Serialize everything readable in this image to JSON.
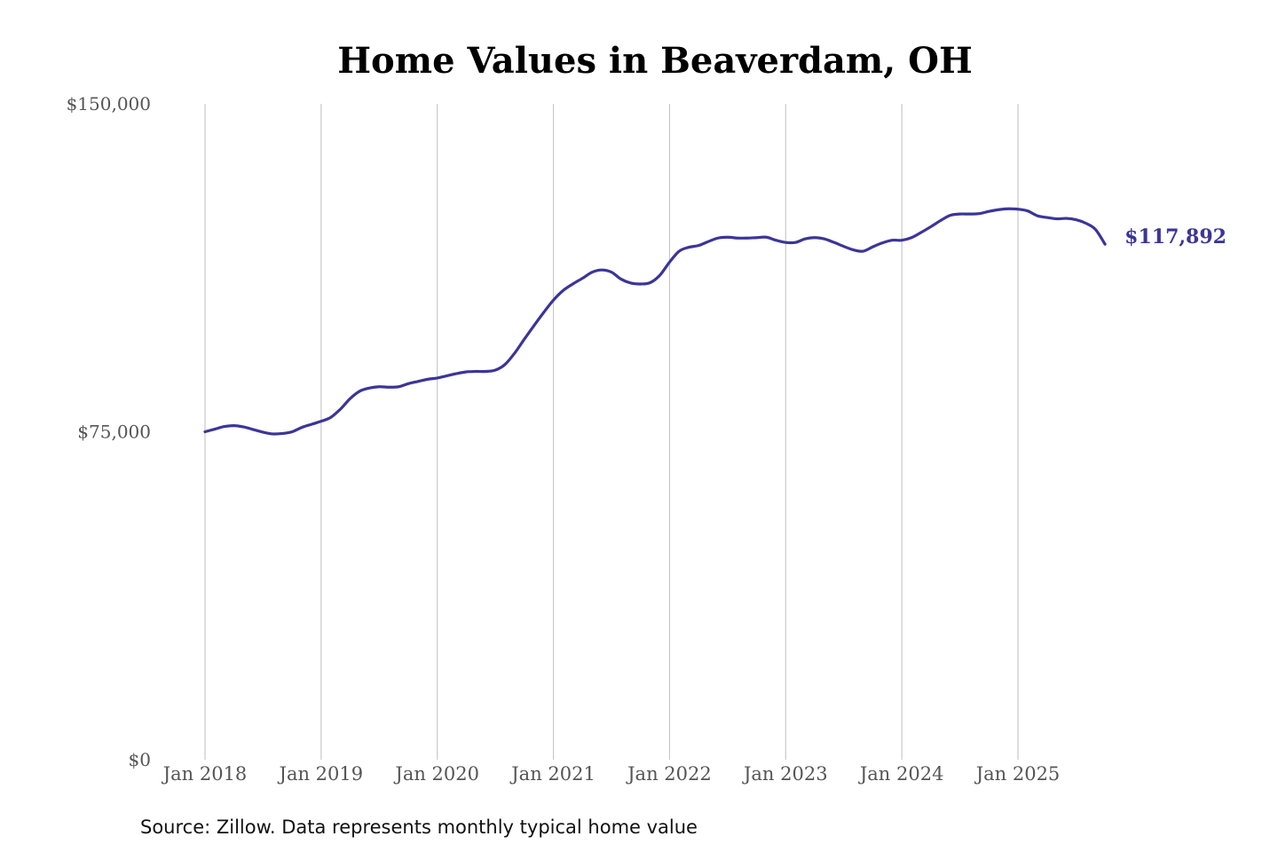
{
  "chart_data": {
    "type": "line",
    "title": "Home Values in Beaverdam, OH",
    "source": "Source: Zillow. Data represents monthly typical home value",
    "ylim": [
      0,
      150000
    ],
    "y_ticks": [
      {
        "value": 0,
        "label": "$0"
      },
      {
        "value": 75000,
        "label": "$75,000"
      },
      {
        "value": 150000,
        "label": "$150,000"
      }
    ],
    "x_ticks": [
      {
        "value": 2018.0,
        "label": "Jan 2018"
      },
      {
        "value": 2019.0,
        "label": "Jan 2019"
      },
      {
        "value": 2020.0,
        "label": "Jan 2020"
      },
      {
        "value": 2021.0,
        "label": "Jan 2021"
      },
      {
        "value": 2022.0,
        "label": "Jan 2022"
      },
      {
        "value": 2023.0,
        "label": "Jan 2023"
      },
      {
        "value": 2024.0,
        "label": "Jan 2024"
      },
      {
        "value": 2025.0,
        "label": "Jan 2025"
      }
    ],
    "xlim": [
      2018.0,
      2025.75
    ],
    "grid": "vertical",
    "line_color": "#3b3598",
    "end_label": "$117,892",
    "series": [
      {
        "x": [
          "2018-01",
          "2018-02",
          "2018-03",
          "2018-04",
          "2018-05",
          "2018-06",
          "2018-07",
          "2018-08",
          "2018-09",
          "2018-10",
          "2018-11",
          "2018-12",
          "2019-01",
          "2019-02",
          "2019-03",
          "2019-04",
          "2019-05",
          "2019-06",
          "2019-07",
          "2019-08",
          "2019-09",
          "2019-10",
          "2019-11",
          "2019-12",
          "2020-01",
          "2020-02",
          "2020-03",
          "2020-04",
          "2020-05",
          "2020-06",
          "2020-07",
          "2020-08",
          "2020-09",
          "2020-10",
          "2020-11",
          "2020-12",
          "2021-01",
          "2021-02",
          "2021-03",
          "2021-04",
          "2021-05",
          "2021-06",
          "2021-07",
          "2021-08",
          "2021-09",
          "2021-10",
          "2021-11",
          "2021-12",
          "2022-01",
          "2022-02",
          "2022-03",
          "2022-04",
          "2022-05",
          "2022-06",
          "2022-07",
          "2022-08",
          "2022-09",
          "2022-10",
          "2022-11",
          "2022-12",
          "2023-01",
          "2023-02",
          "2023-03",
          "2023-04",
          "2023-05",
          "2023-06",
          "2023-07",
          "2023-08",
          "2023-09",
          "2023-10",
          "2023-11",
          "2023-12",
          "2024-01",
          "2024-02",
          "2024-03",
          "2024-04",
          "2024-05",
          "2024-06",
          "2024-07",
          "2024-08",
          "2024-09",
          "2024-10",
          "2024-11",
          "2024-12",
          "2025-01",
          "2025-02",
          "2025-03",
          "2025-04",
          "2025-05",
          "2025-06",
          "2025-07",
          "2025-08",
          "2025-09",
          "2025-10"
        ],
        "values": [
          75000,
          75600,
          76200,
          76400,
          76100,
          75500,
          74900,
          74500,
          74600,
          75000,
          76000,
          76700,
          77400,
          78300,
          80200,
          82600,
          84300,
          85000,
          85300,
          85200,
          85300,
          86000,
          86500,
          87000,
          87300,
          87800,
          88300,
          88700,
          88800,
          88800,
          89100,
          90400,
          93000,
          96200,
          99300,
          102300,
          105100,
          107300,
          108800,
          110100,
          111500,
          112000,
          111500,
          109900,
          109000,
          108800,
          109100,
          110800,
          113800,
          116300,
          117200,
          117600,
          118500,
          119300,
          119500,
          119300,
          119300,
          119400,
          119500,
          118800,
          118300,
          118300,
          119100,
          119400,
          119100,
          118300,
          117400,
          116600,
          116300,
          117300,
          118200,
          118800,
          118800,
          119400,
          120600,
          121900,
          123300,
          124500,
          124800,
          124800,
          124900,
          125400,
          125800,
          126000,
          125900,
          125500,
          124400,
          124000,
          123700,
          123800,
          123500,
          122700,
          121300,
          117892
        ]
      }
    ]
  }
}
